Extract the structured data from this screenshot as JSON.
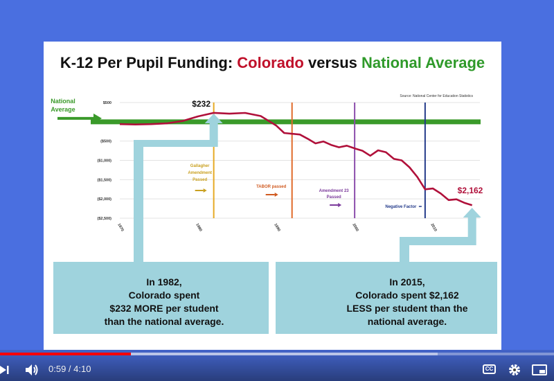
{
  "slide": {
    "title_part1": "K-12 Per Pupil Funding: ",
    "title_colorado": "Colorado",
    "title_mid": " versus ",
    "title_national": "National Average",
    "source": "Source: National Center for Education Statistics",
    "national_average_label_line1": "National",
    "national_average_label_line2": "Average",
    "annotations": {
      "peak_value": "$232",
      "end_value": "$2,162",
      "gallagher": [
        "Gallagher",
        "Amendment",
        "Passed"
      ],
      "tabor": "TABOR passed",
      "amendment23": [
        "Amendment 23",
        "Passed"
      ],
      "negative_factor": "Negative Factor"
    },
    "callout_left": [
      "In 1982,",
      "Colorado spent",
      "$232 MORE per student",
      "than the national average."
    ],
    "callout_right": [
      "In 2015,",
      "Colorado spent $2,162",
      "LESS per student than the",
      "national average."
    ]
  },
  "chart_data": {
    "type": "line",
    "y_tick_labels": [
      "$500",
      "$0",
      "($500)",
      "($1,000)",
      "($1,500)",
      "($2,000)",
      "($2,500)"
    ],
    "x_tick_labels": [
      "1970",
      "1980",
      "1990",
      "2000",
      "2010"
    ],
    "ylim": [
      -2500,
      500
    ],
    "xlim": [
      1970,
      2016
    ],
    "series": [
      {
        "color": "#b0103a",
        "points": [
          [
            1970,
            -60
          ],
          [
            1972,
            -70
          ],
          [
            1974,
            -60
          ],
          [
            1976,
            -40
          ],
          [
            1978,
            20
          ],
          [
            1980,
            140
          ],
          [
            1982,
            232
          ],
          [
            1984,
            210
          ],
          [
            1986,
            230
          ],
          [
            1988,
            150
          ],
          [
            1990,
            -100
          ],
          [
            1991,
            -290
          ],
          [
            1993,
            -330
          ],
          [
            1994,
            -440
          ],
          [
            1995,
            -560
          ],
          [
            1996,
            -510
          ],
          [
            1997,
            -600
          ],
          [
            1998,
            -660
          ],
          [
            1999,
            -620
          ],
          [
            2000,
            -690
          ],
          [
            2001,
            -750
          ],
          [
            2002,
            -880
          ],
          [
            2003,
            -740
          ],
          [
            2004,
            -790
          ],
          [
            2005,
            -960
          ],
          [
            2006,
            -1000
          ],
          [
            2007,
            -1180
          ],
          [
            2008,
            -1430
          ],
          [
            2009,
            -1750
          ],
          [
            2010,
            -1730
          ],
          [
            2011,
            -1860
          ],
          [
            2012,
            -2030
          ],
          [
            2013,
            -2010
          ],
          [
            2014,
            -2100
          ],
          [
            2015,
            -2162
          ]
        ]
      }
    ],
    "reference_lines": [
      {
        "year": 1982,
        "color": "#e6a923"
      },
      {
        "year": 1992,
        "color": "#e06a2a"
      },
      {
        "year": 2000,
        "color": "#8b4cab"
      },
      {
        "year": 2009,
        "color": "#233a8a"
      }
    ],
    "national_average_value": 0
  },
  "player": {
    "current_time": "0:59",
    "duration": "4:10",
    "separator": " / ",
    "progress_fraction": 0.236,
    "buffered_fraction": 0.79,
    "cc_label": "CC",
    "colors": {
      "progress": "#ff0000",
      "background": "#4a6fe0"
    }
  }
}
